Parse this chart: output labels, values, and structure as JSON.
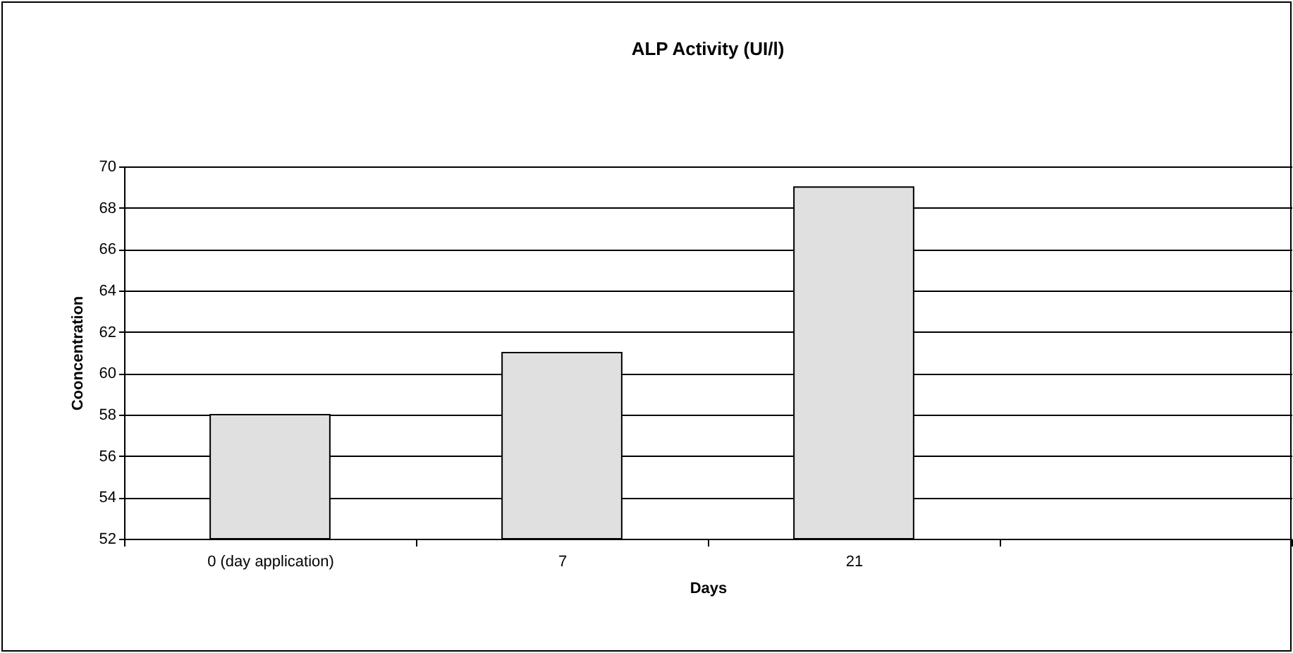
{
  "chart_data": {
    "type": "bar",
    "title": "ALP Activity (UI/l)",
    "xlabel": "Days",
    "ylabel": "Cooncentration",
    "categories": [
      "0 (day application)",
      "7",
      "21",
      null
    ],
    "values": [
      58,
      61,
      69,
      null
    ],
    "color": "#e0e0e0",
    "ylim": [
      52,
      70
    ],
    "yticks": [
      52,
      54,
      56,
      58,
      60,
      62,
      64,
      66,
      68,
      70
    ],
    "grid": "y"
  }
}
